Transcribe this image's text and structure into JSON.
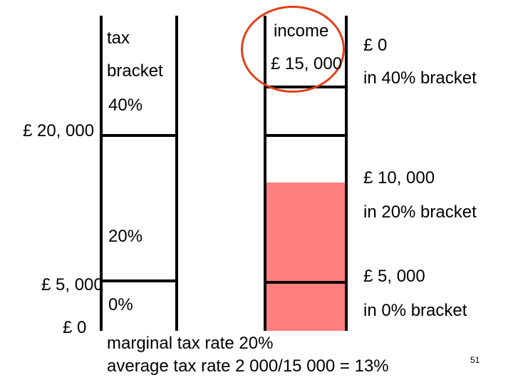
{
  "colors": {
    "fill": "#ff7f7f",
    "highlight_circle": "#e2401a"
  },
  "tax_column": {
    "header_line1": "tax",
    "header_line2": "bracket",
    "rate_top": "40%",
    "rate_mid": "20%",
    "rate_low": "0%"
  },
  "axis_labels": {
    "l20000": "£ 20, 000",
    "l5000": "£ 5, 000",
    "l0": "£ 0"
  },
  "income_column": {
    "header": "income",
    "value": "£ 15, 000",
    "filled_from": 0,
    "filled_to": 15000
  },
  "breakdown": {
    "top_amount": "£ 0",
    "top_desc": "in 40% bracket",
    "mid_amount": "£ 10, 000",
    "mid_desc": "in 20% bracket",
    "low_amount": "£ 5, 000",
    "low_desc": "in 0% bracket"
  },
  "summary": {
    "line1": "marginal tax rate 20%",
    "line2": "average tax rate 2 000/15 000 = 13%"
  },
  "page_number": "51"
}
